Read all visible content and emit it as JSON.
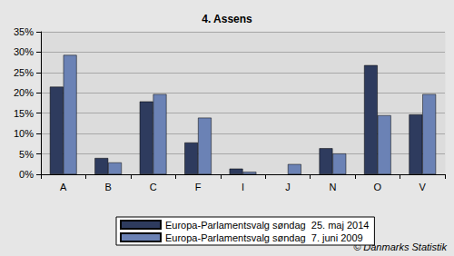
{
  "chart_data": {
    "type": "bar",
    "title": "4. Assens",
    "categories": [
      "A",
      "B",
      "C",
      "F",
      "I",
      "J",
      "N",
      "O",
      "V"
    ],
    "series": [
      {
        "name": "Europa-Parlamentsvalg søndag  25. maj 2014",
        "color": "#2e3b5e",
        "values": [
          21.5,
          4.0,
          17.9,
          7.8,
          1.4,
          null,
          6.4,
          26.8,
          14.7
        ]
      },
      {
        "name": "Europa-Parlamentsvalg søndag  7. juni 2009",
        "color": "#6b82b5",
        "values": [
          29.3,
          2.9,
          19.7,
          13.9,
          0.6,
          2.5,
          5.1,
          14.5,
          19.7
        ]
      }
    ],
    "ylim": [
      0,
      35
    ],
    "yticks": [
      {
        "value": 0,
        "label": "0%"
      },
      {
        "value": 5,
        "label": "5%"
      },
      {
        "value": 10,
        "label": "10%"
      },
      {
        "value": 15,
        "label": "15%"
      },
      {
        "value": 20,
        "label": "20%"
      },
      {
        "value": 25,
        "label": "25%"
      },
      {
        "value": 30,
        "label": "30%"
      },
      {
        "value": 35,
        "label": "35%"
      }
    ],
    "grid": true,
    "legend": "bottom",
    "annotations": [
      "© Danmarks Statistik"
    ]
  }
}
